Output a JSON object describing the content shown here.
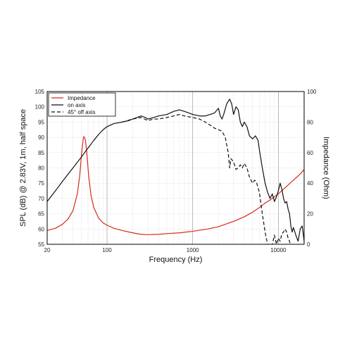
{
  "chart_data": {
    "type": "line",
    "xlabel": "Frequency (Hz)",
    "ylabel": "SPL (dB) @ 2.83V, 1m, half space",
    "y2label": "Impedance (Ohm)",
    "x_scale": "log",
    "xlim": [
      20,
      20000
    ],
    "ylim": [
      55,
      105
    ],
    "y2lim": [
      0,
      100
    ],
    "x_ticks": [
      {
        "v": 20,
        "label": "20"
      },
      {
        "v": 100,
        "label": "100"
      },
      {
        "v": 1000,
        "label": "1000"
      },
      {
        "v": 10000,
        "label": "10000"
      }
    ],
    "y_ticks": [
      55,
      60,
      65,
      70,
      75,
      80,
      85,
      90,
      95,
      100,
      105
    ],
    "y2_ticks": [
      0,
      20,
      40,
      60,
      80,
      100
    ],
    "grid": true,
    "legend_position": "top-left",
    "series": [
      {
        "name": "Impedance",
        "axis": "right",
        "color": "#d62a1e",
        "dash": "solid",
        "points": [
          [
            20,
            9
          ],
          [
            25,
            10.5
          ],
          [
            30,
            13
          ],
          [
            35,
            16.5
          ],
          [
            40,
            22
          ],
          [
            45,
            33
          ],
          [
            48,
            45
          ],
          [
            51,
            62
          ],
          [
            53,
            70
          ],
          [
            54,
            70.5
          ],
          [
            56,
            68
          ],
          [
            58,
            60
          ],
          [
            61,
            45
          ],
          [
            65,
            32
          ],
          [
            70,
            24
          ],
          [
            80,
            17
          ],
          [
            90,
            14
          ],
          [
            100,
            12.5
          ],
          [
            120,
            10.5
          ],
          [
            150,
            9
          ],
          [
            200,
            7.5
          ],
          [
            250,
            6.5
          ],
          [
            300,
            6.3
          ],
          [
            400,
            6.5
          ],
          [
            500,
            7
          ],
          [
            700,
            7.5
          ],
          [
            1000,
            8.5
          ],
          [
            1500,
            10
          ],
          [
            2000,
            11.5
          ],
          [
            3000,
            15
          ],
          [
            4000,
            18
          ],
          [
            5000,
            21
          ],
          [
            6000,
            24
          ],
          [
            7000,
            27
          ],
          [
            8000,
            29
          ],
          [
            10000,
            33
          ],
          [
            12000,
            37
          ],
          [
            15000,
            42
          ],
          [
            18000,
            46
          ],
          [
            20000,
            49
          ]
        ]
      },
      {
        "name": "on axis",
        "axis": "left",
        "color": "#111111",
        "dash": "solid",
        "points": [
          [
            20,
            69
          ],
          [
            25,
            72.5
          ],
          [
            30,
            75.5
          ],
          [
            40,
            80
          ],
          [
            50,
            83.5
          ],
          [
            60,
            86.5
          ],
          [
            70,
            89
          ],
          [
            80,
            91
          ],
          [
            90,
            92.5
          ],
          [
            100,
            93.5
          ],
          [
            120,
            94.5
          ],
          [
            150,
            95
          ],
          [
            180,
            95.5
          ],
          [
            200,
            96
          ],
          [
            250,
            97
          ],
          [
            280,
            96.5
          ],
          [
            300,
            96
          ],
          [
            350,
            96.5
          ],
          [
            400,
            97
          ],
          [
            500,
            97.5
          ],
          [
            600,
            98.5
          ],
          [
            700,
            99
          ],
          [
            800,
            98.5
          ],
          [
            900,
            98
          ],
          [
            1000,
            97.5
          ],
          [
            1200,
            97
          ],
          [
            1400,
            97
          ],
          [
            1600,
            97.5
          ],
          [
            1800,
            98
          ],
          [
            2000,
            99.5
          ],
          [
            2100,
            97
          ],
          [
            2200,
            96
          ],
          [
            2300,
            97.5
          ],
          [
            2500,
            101
          ],
          [
            2700,
            102.5
          ],
          [
            2850,
            101
          ],
          [
            3000,
            97.5
          ],
          [
            3200,
            100
          ],
          [
            3400,
            99
          ],
          [
            3600,
            95
          ],
          [
            3800,
            93.5
          ],
          [
            4000,
            95
          ],
          [
            4300,
            93.5
          ],
          [
            4600,
            90.5
          ],
          [
            5000,
            89.5
          ],
          [
            5400,
            90.5
          ],
          [
            5800,
            89
          ],
          [
            6000,
            86
          ],
          [
            6500,
            80
          ],
          [
            7000,
            75
          ],
          [
            7500,
            72
          ],
          [
            8000,
            70
          ],
          [
            8500,
            71.5
          ],
          [
            9000,
            69
          ],
          [
            9500,
            70.5
          ],
          [
            10000,
            72.5
          ],
          [
            10500,
            75
          ],
          [
            11000,
            73
          ],
          [
            11500,
            70
          ],
          [
            12000,
            68.5
          ],
          [
            12500,
            69
          ],
          [
            13000,
            66.5
          ],
          [
            13500,
            65
          ],
          [
            14000,
            61
          ],
          [
            14500,
            59
          ],
          [
            15000,
            60.5
          ],
          [
            16000,
            58
          ],
          [
            17000,
            56
          ],
          [
            18000,
            60
          ],
          [
            19000,
            61
          ],
          [
            20000,
            56
          ]
        ]
      },
      {
        "name": "45° off axis",
        "axis": "left",
        "color": "#111111",
        "dash": "5,3",
        "points": [
          [
            150,
            95
          ],
          [
            200,
            96
          ],
          [
            250,
            96.5
          ],
          [
            300,
            95.5
          ],
          [
            350,
            96
          ],
          [
            400,
            96
          ],
          [
            500,
            96.5
          ],
          [
            600,
            97
          ],
          [
            700,
            97.5
          ],
          [
            800,
            97
          ],
          [
            1000,
            96.5
          ],
          [
            1200,
            96
          ],
          [
            1400,
            95
          ],
          [
            1600,
            94
          ],
          [
            1800,
            93
          ],
          [
            2000,
            92.5
          ],
          [
            2200,
            92
          ],
          [
            2400,
            90
          ],
          [
            2600,
            85
          ],
          [
            2700,
            80
          ],
          [
            2800,
            83
          ],
          [
            3000,
            82
          ],
          [
            3200,
            79.5
          ],
          [
            3400,
            80
          ],
          [
            3600,
            81
          ],
          [
            3800,
            80
          ],
          [
            4000,
            81.5
          ],
          [
            4300,
            80
          ],
          [
            4600,
            77
          ],
          [
            5000,
            75
          ],
          [
            5300,
            76
          ],
          [
            5600,
            75
          ],
          [
            6000,
            72
          ],
          [
            6500,
            65
          ],
          [
            7000,
            59
          ],
          [
            7500,
            55
          ],
          [
            8000,
            53
          ],
          [
            8500,
            55
          ],
          [
            9000,
            58
          ],
          [
            9500,
            55
          ],
          [
            10000,
            57
          ],
          [
            10500,
            56
          ],
          [
            11000,
            58.5
          ],
          [
            11500,
            59
          ],
          [
            12000,
            60
          ],
          [
            12500,
            59
          ],
          [
            13000,
            57
          ],
          [
            13500,
            56
          ],
          [
            14000,
            54
          ],
          [
            14500,
            55
          ]
        ]
      }
    ]
  }
}
